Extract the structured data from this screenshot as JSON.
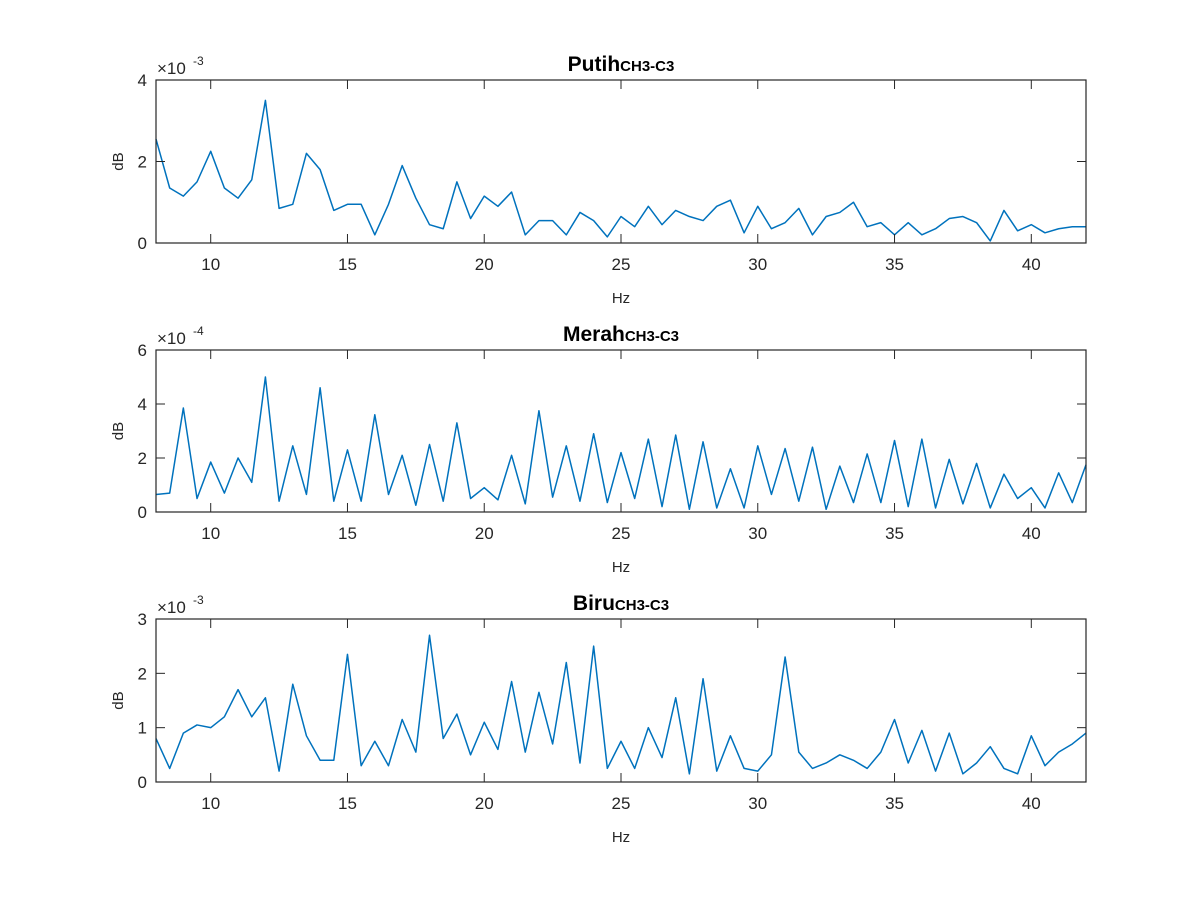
{
  "colors": {
    "series": "#0072BD",
    "axis": "#262626",
    "background": "#ffffff"
  },
  "chart_data": [
    {
      "type": "line",
      "title": "Putih",
      "title_sub": "CH3-C3",
      "xlabel": "Hz",
      "ylabel": "dB",
      "exponent_base": "×10",
      "exponent": "-3",
      "xlim": [
        8,
        42
      ],
      "ylim": [
        0,
        4
      ],
      "xticks": [
        10,
        15,
        20,
        25,
        30,
        35,
        40
      ],
      "yticks": [
        0,
        2,
        4
      ],
      "grid": false,
      "series": [
        {
          "x": [
            8,
            8.5,
            9,
            9.5,
            10,
            10.5,
            11,
            11.5,
            12,
            12.5,
            13,
            13.5,
            14,
            14.5,
            15,
            15.5,
            16,
            16.5,
            17,
            17.5,
            18,
            18.5,
            19,
            19.5,
            20,
            20.5,
            21,
            21.5,
            22,
            22.5,
            23,
            23.5,
            24,
            24.5,
            25,
            25.5,
            26,
            26.5,
            27,
            27.5,
            28,
            28.5,
            29,
            29.5,
            30,
            30.5,
            31,
            31.5,
            32,
            32.5,
            33,
            33.5,
            34,
            34.5,
            35,
            35.5,
            36,
            36.5,
            37,
            37.5,
            38,
            38.5,
            39,
            39.5,
            40,
            40.5,
            41,
            41.5,
            42
          ],
          "y": [
            2.55,
            1.35,
            1.15,
            1.5,
            2.25,
            1.35,
            1.1,
            1.55,
            3.5,
            0.85,
            0.95,
            2.2,
            1.8,
            0.8,
            0.95,
            0.95,
            0.2,
            0.95,
            1.9,
            1.1,
            0.45,
            0.35,
            1.5,
            0.6,
            1.15,
            0.9,
            1.25,
            0.2,
            0.55,
            0.55,
            0.2,
            0.75,
            0.55,
            0.15,
            0.65,
            0.4,
            0.9,
            0.45,
            0.8,
            0.65,
            0.55,
            0.9,
            1.05,
            0.25,
            0.9,
            0.35,
            0.5,
            0.85,
            0.2,
            0.65,
            0.75,
            1.0,
            0.4,
            0.5,
            0.2,
            0.5,
            0.2,
            0.35,
            0.6,
            0.65,
            0.5,
            0.05,
            0.8,
            0.3,
            0.45,
            0.25,
            0.35,
            0.4,
            0.4
          ]
        }
      ]
    },
    {
      "type": "line",
      "title": "Merah",
      "title_sub": "CH3-C3",
      "xlabel": "Hz",
      "ylabel": "dB",
      "exponent_base": "×10",
      "exponent": "-4",
      "xlim": [
        8,
        42
      ],
      "ylim": [
        0,
        6
      ],
      "xticks": [
        10,
        15,
        20,
        25,
        30,
        35,
        40
      ],
      "yticks": [
        0,
        2,
        4,
        6
      ],
      "grid": false,
      "series": [
        {
          "x": [
            8,
            8.5,
            9,
            9.5,
            10,
            10.5,
            11,
            11.5,
            12,
            12.5,
            13,
            13.5,
            14,
            14.5,
            15,
            15.5,
            16,
            16.5,
            17,
            17.5,
            18,
            18.5,
            19,
            19.5,
            20,
            20.5,
            21,
            21.5,
            22,
            22.5,
            23,
            23.5,
            24,
            24.5,
            25,
            25.5,
            26,
            26.5,
            27,
            27.5,
            28,
            28.5,
            29,
            29.5,
            30,
            30.5,
            31,
            31.5,
            32,
            32.5,
            33,
            33.5,
            34,
            34.5,
            35,
            35.5,
            36,
            36.5,
            37,
            37.5,
            38,
            38.5,
            39,
            39.5,
            40,
            40.5,
            41,
            41.5,
            42
          ],
          "y": [
            0.65,
            0.7,
            3.85,
            0.5,
            1.85,
            0.7,
            2.0,
            1.1,
            5.0,
            0.4,
            2.45,
            0.65,
            4.6,
            0.4,
            2.3,
            0.4,
            3.6,
            0.65,
            2.1,
            0.25,
            2.5,
            0.4,
            3.3,
            0.5,
            0.9,
            0.45,
            2.1,
            0.3,
            3.75,
            0.55,
            2.45,
            0.4,
            2.9,
            0.35,
            2.2,
            0.5,
            2.7,
            0.2,
            2.85,
            0.1,
            2.6,
            0.15,
            1.6,
            0.15,
            2.45,
            0.65,
            2.35,
            0.4,
            2.4,
            0.1,
            1.7,
            0.35,
            2.15,
            0.35,
            2.65,
            0.2,
            2.7,
            0.15,
            1.95,
            0.3,
            1.8,
            0.15,
            1.4,
            0.5,
            0.9,
            0.15,
            1.45,
            0.35,
            1.75
          ]
        }
      ]
    },
    {
      "type": "line",
      "title": "Biru",
      "title_sub": "CH3-C3",
      "xlabel": "Hz",
      "ylabel": "dB",
      "exponent_base": "×10",
      "exponent": "-3",
      "xlim": [
        8,
        42
      ],
      "ylim": [
        0,
        3
      ],
      "xticks": [
        10,
        15,
        20,
        25,
        30,
        35,
        40
      ],
      "yticks": [
        0,
        1,
        2,
        3
      ],
      "grid": false,
      "series": [
        {
          "x": [
            8,
            8.5,
            9,
            9.5,
            10,
            10.5,
            11,
            11.5,
            12,
            12.5,
            13,
            13.5,
            14,
            14.5,
            15,
            15.5,
            16,
            16.5,
            17,
            17.5,
            18,
            18.5,
            19,
            19.5,
            20,
            20.5,
            21,
            21.5,
            22,
            22.5,
            23,
            23.5,
            24,
            24.5,
            25,
            25.5,
            26,
            26.5,
            27,
            27.5,
            28,
            28.5,
            29,
            29.5,
            30,
            30.5,
            31,
            31.5,
            32,
            32.5,
            33,
            33.5,
            34,
            34.5,
            35,
            35.5,
            36,
            36.5,
            37,
            37.5,
            38,
            38.5,
            39,
            39.5,
            40,
            40.5,
            41,
            41.5,
            42
          ],
          "y": [
            0.8,
            0.25,
            0.9,
            1.05,
            1.0,
            1.2,
            1.7,
            1.2,
            1.55,
            0.2,
            1.8,
            0.85,
            0.4,
            0.4,
            2.35,
            0.3,
            0.75,
            0.3,
            1.15,
            0.55,
            2.7,
            0.8,
            1.25,
            0.5,
            1.1,
            0.6,
            1.85,
            0.55,
            1.65,
            0.7,
            2.2,
            0.35,
            2.5,
            0.25,
            0.75,
            0.25,
            1.0,
            0.45,
            1.55,
            0.15,
            1.9,
            0.2,
            0.85,
            0.25,
            0.2,
            0.5,
            2.3,
            0.55,
            0.25,
            0.35,
            0.5,
            0.4,
            0.25,
            0.55,
            1.15,
            0.35,
            0.95,
            0.2,
            0.9,
            0.15,
            0.35,
            0.65,
            0.25,
            0.15,
            0.85,
            0.3,
            0.55,
            0.7,
            0.9
          ]
        }
      ]
    }
  ]
}
